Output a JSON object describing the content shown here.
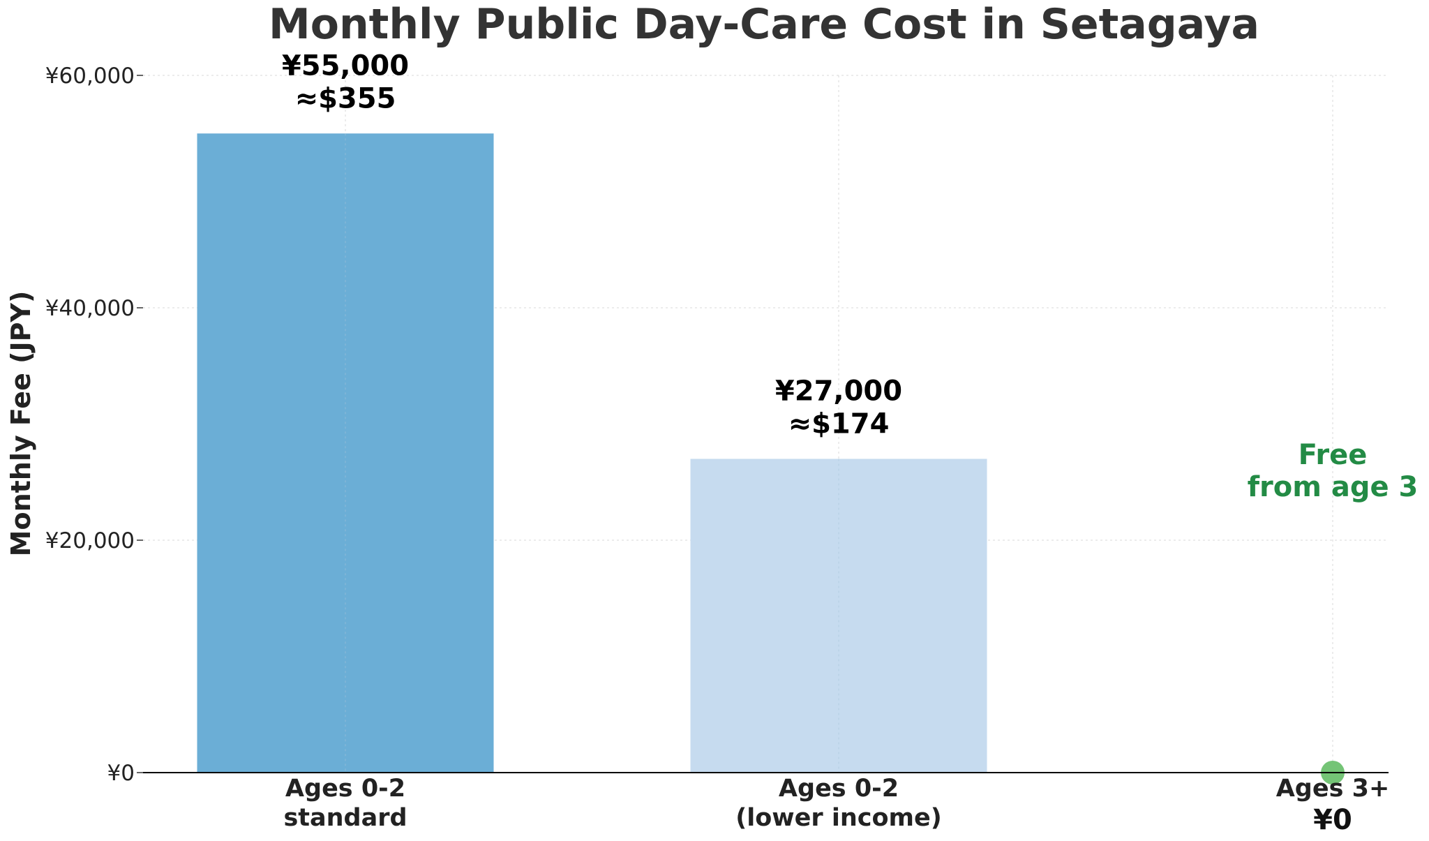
{
  "chart_data": {
    "type": "bar",
    "title": "Monthly Public Day-Care Cost in Setagaya",
    "ylabel": "Monthly Fee (JPY)",
    "xlabel": "",
    "ylim": [
      0,
      60000
    ],
    "yticks": [
      0,
      20000,
      40000,
      60000
    ],
    "ytick_labels": [
      "¥0",
      "¥20,000",
      "¥40,000",
      "¥60,000"
    ],
    "grid": true,
    "categories": [
      {
        "lines": [
          "Ages 0-2",
          "standard"
        ],
        "sub_label": ""
      },
      {
        "lines": [
          "Ages 0-2",
          "(lower income)"
        ],
        "sub_label": ""
      },
      {
        "lines": [
          "Ages 3+"
        ],
        "sub_label": "¥0"
      }
    ],
    "values": [
      55000,
      27000,
      0
    ],
    "value_labels": [
      [
        "¥55,000",
        "≈$355"
      ],
      [
        "¥27,000",
        "≈$174"
      ],
      []
    ],
    "colors": [
      "#6baed6",
      "#c6dbef",
      "#74c476"
    ],
    "markers": [
      false,
      false,
      true
    ],
    "annotation": {
      "lines": [
        "Free",
        "from age 3"
      ],
      "category_index": 2,
      "y": 26000,
      "color": "#238b45"
    }
  }
}
